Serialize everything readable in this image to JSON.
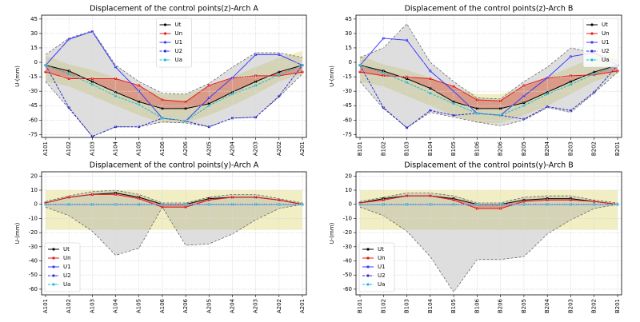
{
  "chart_data": [
    {
      "type": "line",
      "title": "Displacement of the control points(z)-Arch A",
      "ylabel": "U-(mm)",
      "categories": [
        "A101",
        "A102",
        "A103",
        "A104",
        "A105",
        "A106",
        "A206",
        "A205",
        "A204",
        "A203",
        "A202",
        "A201"
      ],
      "series": [
        {
          "name": "Ut",
          "color": "#000000",
          "linestyle": "solid",
          "values": [
            -3,
            -9,
            -20,
            -31,
            -41,
            -48,
            -48,
            -43,
            -31,
            -20,
            -10,
            -3
          ]
        },
        {
          "name": "Un",
          "color": "#e41a1c",
          "linestyle": "solid",
          "values": [
            -10,
            -17,
            -17,
            -17,
            -24,
            -39,
            -41,
            -24,
            -16,
            -14,
            -14,
            -10
          ]
        },
        {
          "name": "U1",
          "color": "#3b3bff",
          "linestyle": "solid",
          "values": [
            -3,
            24,
            32,
            -5,
            -30,
            -58,
            -61,
            -37,
            -16,
            8,
            8,
            -3
          ]
        },
        {
          "name": "U2",
          "color": "#2a2ad4",
          "linestyle": "dashed",
          "values": [
            -3,
            -47,
            -77,
            -67,
            -67,
            -58,
            -61,
            -67,
            -58,
            -57,
            -35,
            -3
          ]
        },
        {
          "name": "Ua",
          "color": "#17becf",
          "linestyle": "dashed",
          "values": [
            -3,
            -12,
            -23,
            -35,
            -44,
            -58,
            -61,
            -45,
            -33,
            -24,
            -13,
            -3
          ]
        }
      ],
      "envelope": {
        "color": "#a0a0a0",
        "upper": [
          8,
          25,
          33,
          -3,
          -20,
          -32,
          -33,
          -22,
          -5,
          10,
          10,
          5
        ],
        "lower": [
          -20,
          -48,
          -77,
          -67,
          -67,
          -62,
          -63,
          -67,
          -58,
          -57,
          -36,
          -12
        ]
      },
      "band": {
        "color": "#e6e39a",
        "upper": [
          7,
          -2,
          -8,
          -16,
          -26,
          -33,
          -33,
          -26,
          -15,
          -5,
          5,
          12
        ],
        "lower": [
          -20,
          -25,
          -35,
          -45,
          -55,
          -63,
          -63,
          -55,
          -45,
          -33,
          -20,
          -12
        ]
      },
      "ylim": [
        -78,
        49
      ],
      "yticks": [
        -75,
        -60,
        -45,
        -30,
        -15,
        0,
        15,
        30,
        45
      ],
      "grid": true,
      "legend": "upper center"
    },
    {
      "type": "line",
      "title": "Displacement of the control points(z)-Arch B",
      "ylabel": "U-(mm)",
      "categories": [
        "B101",
        "B102",
        "B103",
        "B104",
        "B105",
        "B106",
        "B206",
        "B205",
        "B204",
        "B203",
        "B202",
        "B201"
      ],
      "series": [
        {
          "name": "Ut",
          "color": "#000000",
          "linestyle": "solid",
          "values": [
            -3,
            -9,
            -17,
            -27,
            -41,
            -48,
            -48,
            -42,
            -31,
            -20,
            -10,
            -3
          ]
        },
        {
          "name": "Un",
          "color": "#e41a1c",
          "linestyle": "solid",
          "values": [
            -10,
            -14,
            -15,
            -17,
            -25,
            -39,
            -40,
            -24,
            -16,
            -14,
            -13,
            -9
          ]
        },
        {
          "name": "U1",
          "color": "#3b3bff",
          "linestyle": "solid",
          "values": [
            -3,
            25,
            23,
            -9,
            -30,
            -53,
            -55,
            -35,
            -16,
            6,
            10,
            -3
          ]
        },
        {
          "name": "U2",
          "color": "#2a2ad4",
          "linestyle": "dashed",
          "values": [
            -3,
            -47,
            -68,
            -50,
            -55,
            -53,
            -55,
            -59,
            -46,
            -50,
            -31,
            -3
          ]
        },
        {
          "name": "Ua",
          "color": "#17becf",
          "linestyle": "dashed",
          "values": [
            -3,
            -11,
            -21,
            -32,
            -43,
            -53,
            -55,
            -45,
            -33,
            -23,
            -12,
            -3
          ]
        }
      ],
      "envelope": {
        "color": "#a0a0a0",
        "upper": [
          5,
          15,
          40,
          0,
          -20,
          -37,
          -38,
          -20,
          -5,
          15,
          10,
          2
        ],
        "lower": [
          -20,
          -48,
          -68,
          -52,
          -57,
          -62,
          -66,
          -60,
          -47,
          -52,
          -32,
          -10
        ]
      },
      "band": {
        "color": "#e6e39a",
        "upper": [
          7,
          -2,
          -8,
          -16,
          -26,
          -33,
          -33,
          -26,
          -15,
          -5,
          5,
          12
        ],
        "lower": [
          -20,
          -25,
          -35,
          -45,
          -55,
          -63,
          -63,
          -55,
          -45,
          -33,
          -20,
          -12
        ]
      },
      "ylim": [
        -78,
        49
      ],
      "yticks": [
        -75,
        -60,
        -45,
        -30,
        -15,
        0,
        15,
        30,
        45
      ],
      "grid": true,
      "legend": "upper right"
    },
    {
      "type": "line",
      "title": "Displacement of the control points(y)-Arch A",
      "ylabel": "U-(mm)",
      "categories": [
        "A101",
        "A102",
        "A103",
        "A104",
        "A105",
        "A106",
        "A206",
        "A205",
        "A204",
        "A203",
        "A202",
        "A201"
      ],
      "series": [
        {
          "name": "Ut",
          "color": "#000000",
          "linestyle": "solid",
          "values": [
            1,
            5,
            7,
            8,
            5,
            0,
            0,
            4,
            5,
            5,
            3,
            0
          ]
        },
        {
          "name": "Un",
          "color": "#e41a1c",
          "linestyle": "solid",
          "values": [
            1,
            5,
            7,
            7,
            4,
            -2,
            -2,
            3,
            5,
            5,
            3,
            0
          ]
        },
        {
          "name": "U1",
          "color": "#3b3bff",
          "linestyle": "solid",
          "values": [
            0,
            0,
            0,
            0,
            0,
            0,
            0,
            0,
            0,
            0,
            0,
            0
          ]
        },
        {
          "name": "U2",
          "color": "#2a2ad4",
          "linestyle": "dashed",
          "values": [
            0,
            0,
            0,
            0,
            0,
            0,
            0,
            0,
            0,
            0,
            0,
            0
          ]
        },
        {
          "name": "Ua",
          "color": "#17becf",
          "linestyle": "dashed",
          "values": [
            0,
            0,
            0,
            0,
            0,
            0,
            0,
            0,
            0,
            0,
            0,
            0
          ]
        }
      ],
      "envelope": {
        "color": "#a0a0a0",
        "upper": [
          2,
          6,
          9,
          10,
          7,
          1,
          1,
          5,
          7,
          7,
          4,
          1
        ],
        "lower": [
          -2,
          -8,
          -19,
          -36,
          -31,
          -2,
          -29,
          -28,
          -21,
          -11,
          -3,
          0
        ]
      },
      "band": {
        "color": "#e6e39a",
        "upper": [
          10,
          10,
          10,
          10,
          10,
          10,
          10,
          10,
          10,
          10,
          10,
          10
        ],
        "lower": [
          -18,
          -18,
          -18,
          -18,
          -18,
          -18,
          -18,
          -18,
          -18,
          -18,
          -18,
          -18
        ]
      },
      "ylim": [
        -64,
        23
      ],
      "yticks": [
        -60,
        -50,
        -40,
        -30,
        -20,
        -10,
        0,
        10,
        20
      ],
      "grid": true,
      "legend": "lower left"
    },
    {
      "type": "line",
      "title": "Displacement of the control points(y)-Arch B",
      "ylabel": "U-(mm)",
      "categories": [
        "B101",
        "B102",
        "B103",
        "B104",
        "B105",
        "B106",
        "B206",
        "B205",
        "B204",
        "B203",
        "B202",
        "B201"
      ],
      "series": [
        {
          "name": "Ut",
          "color": "#000000",
          "linestyle": "solid",
          "values": [
            1,
            4,
            6,
            6,
            4,
            0,
            0,
            3,
            4,
            4,
            2,
            0
          ]
        },
        {
          "name": "Un",
          "color": "#e41a1c",
          "linestyle": "solid",
          "values": [
            1,
            3,
            6,
            6,
            3,
            -3,
            -3,
            2,
            3,
            3,
            2,
            0
          ]
        },
        {
          "name": "U1",
          "color": "#3b3bff",
          "linestyle": "solid",
          "values": [
            0,
            0,
            0,
            0,
            0,
            0,
            0,
            0,
            0,
            0,
            0,
            0
          ]
        },
        {
          "name": "U2",
          "color": "#2a2ad4",
          "linestyle": "dashed",
          "values": [
            0,
            0,
            0,
            0,
            0,
            0,
            0,
            0,
            0,
            0,
            0,
            0
          ]
        },
        {
          "name": "Ua",
          "color": "#17becf",
          "linestyle": "dashed",
          "values": [
            0,
            0,
            0,
            0,
            0,
            0,
            0,
            0,
            0,
            0,
            0,
            0
          ]
        }
      ],
      "envelope": {
        "color": "#a0a0a0",
        "upper": [
          2,
          5,
          8,
          8,
          6,
          1,
          1,
          5,
          6,
          6,
          3,
          1
        ],
        "lower": [
          -2,
          -8,
          -19,
          -37,
          -62,
          -39,
          -39,
          -37,
          -21,
          -11,
          -3,
          0
        ]
      },
      "band": {
        "color": "#e6e39a",
        "upper": [
          10,
          10,
          10,
          10,
          10,
          10,
          10,
          10,
          10,
          10,
          10,
          10
        ],
        "lower": [
          -18,
          -18,
          -18,
          -18,
          -18,
          -18,
          -18,
          -18,
          -18,
          -18,
          -18,
          -18
        ]
      },
      "ylim": [
        -64,
        23
      ],
      "yticks": [
        -60,
        -50,
        -40,
        -30,
        -20,
        -10,
        0,
        10,
        20
      ],
      "grid": true,
      "legend": "lower left"
    }
  ]
}
